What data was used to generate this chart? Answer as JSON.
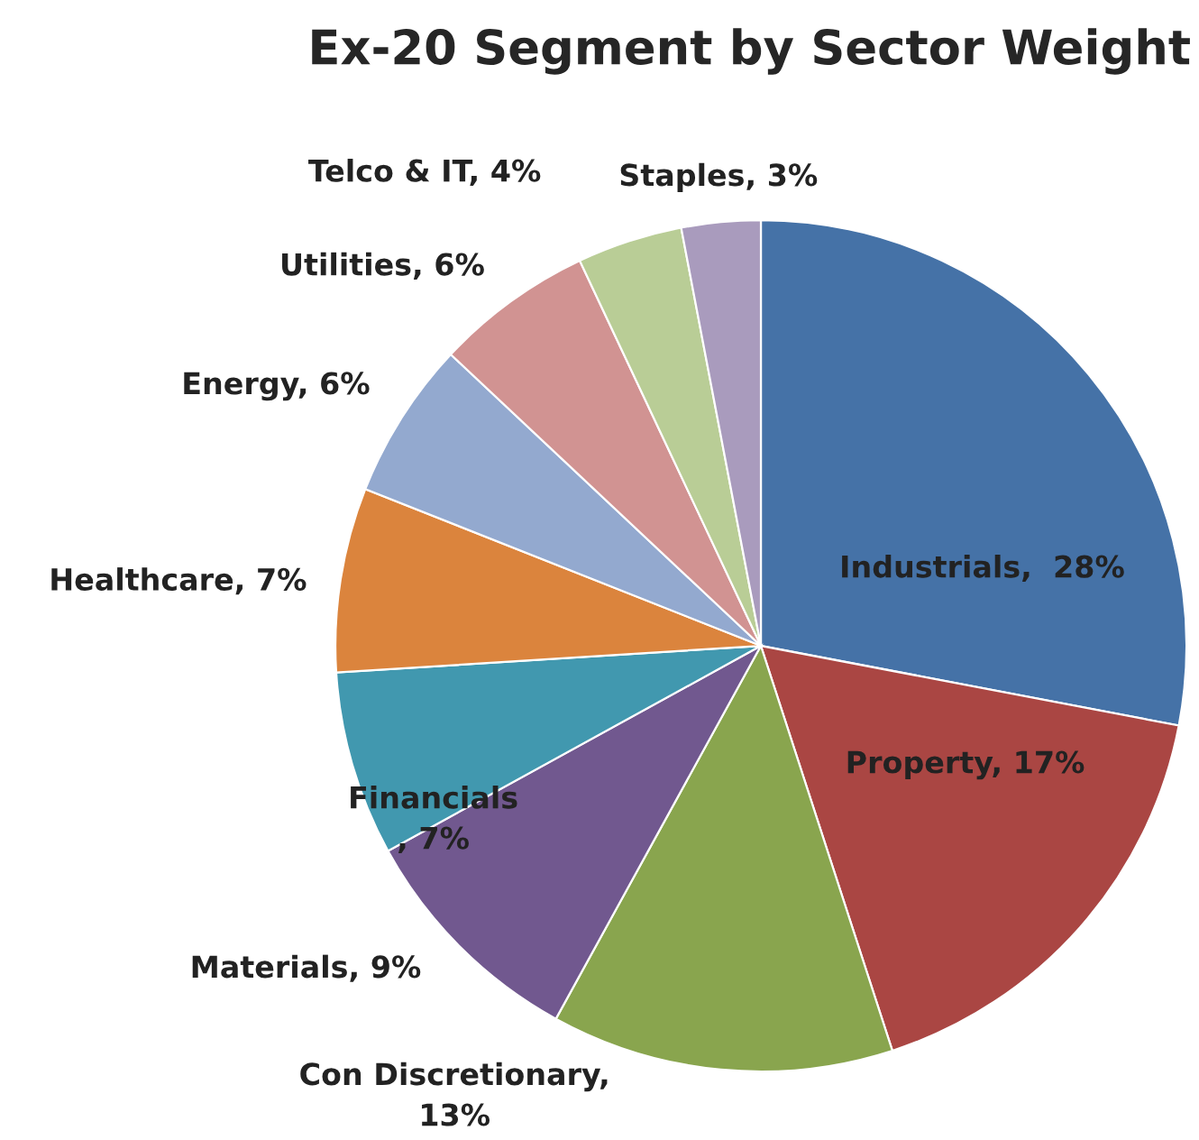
{
  "chart_data": {
    "type": "pie",
    "title": "Ex-20 Segment by Sector Weight",
    "categories": [
      "Industrials",
      "Property",
      "Con Discretionary",
      "Materials",
      "Financials",
      "Healthcare",
      "Energy",
      "Utilities",
      "Telco & IT",
      "Staples"
    ],
    "values": [
      28,
      17,
      13,
      9,
      7,
      7,
      6,
      6,
      4,
      3
    ],
    "colors": [
      "#4572a7",
      "#aa4643",
      "#89a54e",
      "#71588f",
      "#4198af",
      "#db843d",
      "#93a9cf",
      "#d19392",
      "#b9cd96",
      "#a99bbd"
    ],
    "value_labels": [
      ",  28%",
      ", 17%",
      ",\n13%",
      ", 9%",
      "\n, 7%",
      ", 7%",
      ", 6%",
      ", 6%",
      ", 4%",
      ", 3%"
    ]
  }
}
